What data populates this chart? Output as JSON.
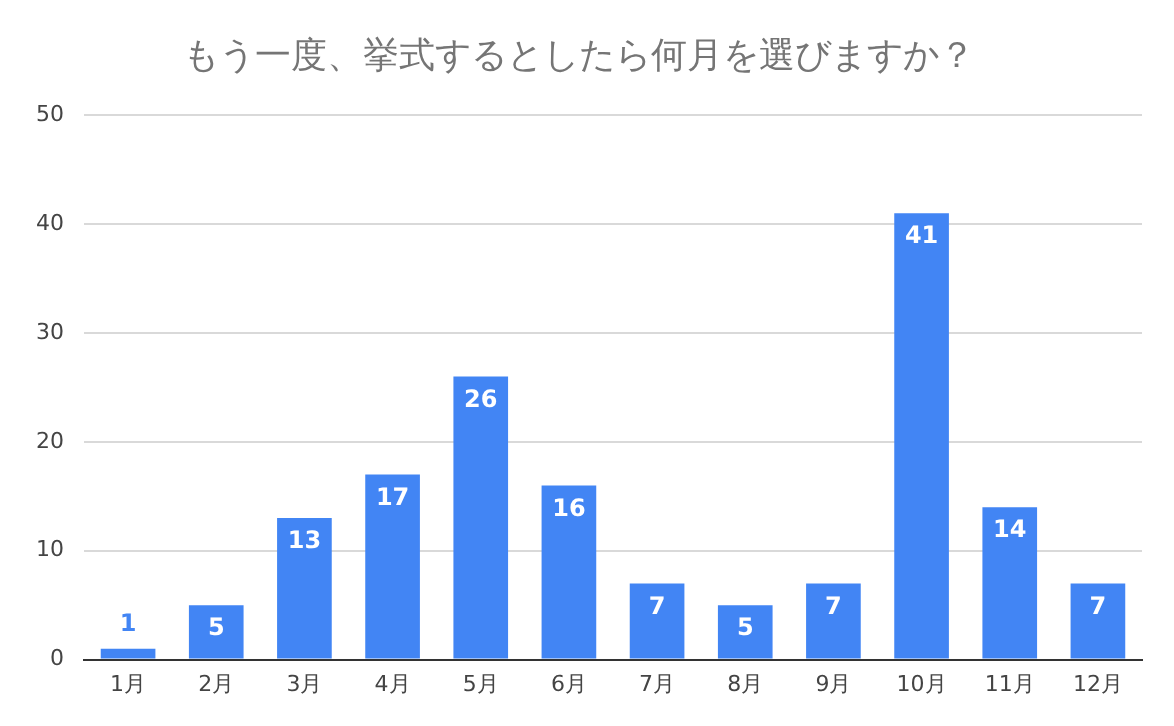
{
  "chart_data": {
    "type": "bar",
    "title": "もう一度、挙式するとしたら何月を選びますか？",
    "categories": [
      "1月",
      "2月",
      "3月",
      "4月",
      "5月",
      "6月",
      "7月",
      "8月",
      "9月",
      "10月",
      "11月",
      "12月"
    ],
    "values": [
      1,
      5,
      13,
      17,
      26,
      16,
      7,
      5,
      7,
      41,
      14,
      7
    ],
    "color": "#4285f4",
    "ylim": [
      0,
      50
    ],
    "yticks": [
      0,
      10,
      20,
      30,
      40,
      50
    ],
    "grid": "y",
    "data_labels": true,
    "legend": false
  }
}
